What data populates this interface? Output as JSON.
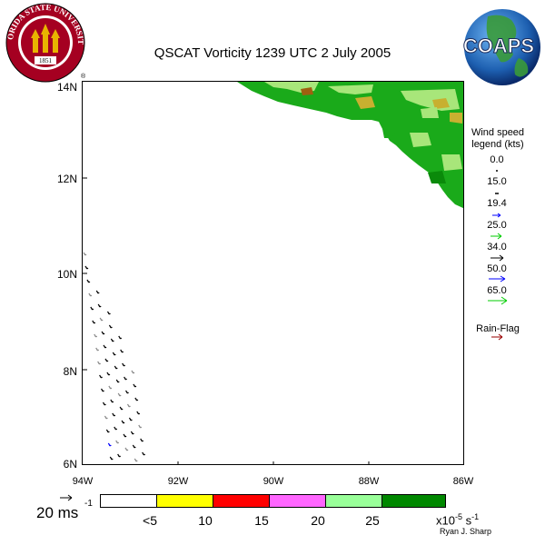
{
  "header": {
    "title": "QSCAT Vorticity 1239 UTC 2 July 2005",
    "left_logo": {
      "icon": "fsu-seal-icon",
      "text_top": "FLORIDA STATE UNIVERSITY",
      "year": "1851",
      "mark": "®",
      "colors": {
        "ring": "#a50021",
        "gold": "#e8b400"
      }
    },
    "right_logo": {
      "icon": "coaps-globe-icon",
      "text": "COAPS"
    }
  },
  "map": {
    "lat_labels": [
      "14N",
      "12N",
      "10N",
      "8N",
      "6N"
    ],
    "lon_labels": [
      "94W",
      "92W",
      "90W",
      "88W",
      "86W"
    ],
    "lat_range": [
      6,
      14
    ],
    "lon_range": [
      -94,
      -86
    ],
    "land_colors": {
      "green": "#1aaa1a",
      "dark_green": "#0a8a0a",
      "light_green": "#a8e67a",
      "olive": "#c8b030",
      "brown": "#a06010"
    }
  },
  "wind_legend": {
    "title_line1": "Wind speed",
    "title_line2": "legend (kts)",
    "entries": [
      {
        "label": "0.0",
        "color": "#000000"
      },
      {
        "label": "15.0",
        "color": "#000000"
      },
      {
        "label": "19.4",
        "color": "#0000ff"
      },
      {
        "label": "25.0",
        "color": "#00cc00"
      },
      {
        "label": "34.0",
        "color": "#000000"
      },
      {
        "label": "50.0",
        "color": "#0000ff"
      },
      {
        "label": "65.0",
        "color": "#00cc00"
      }
    ],
    "rain_flag_label": "Rain-Flag",
    "rain_flag_color": "#990000"
  },
  "colorbar": {
    "colors": [
      "#ffffff",
      "#ffff00",
      "#ff0000",
      "#ff66ff",
      "#99ff99",
      "#008800"
    ],
    "tick_labels": [
      "<5",
      "10",
      "15",
      "20",
      "25"
    ],
    "units": "x10",
    "units_exp": "-5",
    "units_s": "s",
    "units_s_exp": "-1"
  },
  "scale": {
    "label": "20 ms",
    "exp": "-1"
  },
  "credit": "Ryan J. Sharp"
}
